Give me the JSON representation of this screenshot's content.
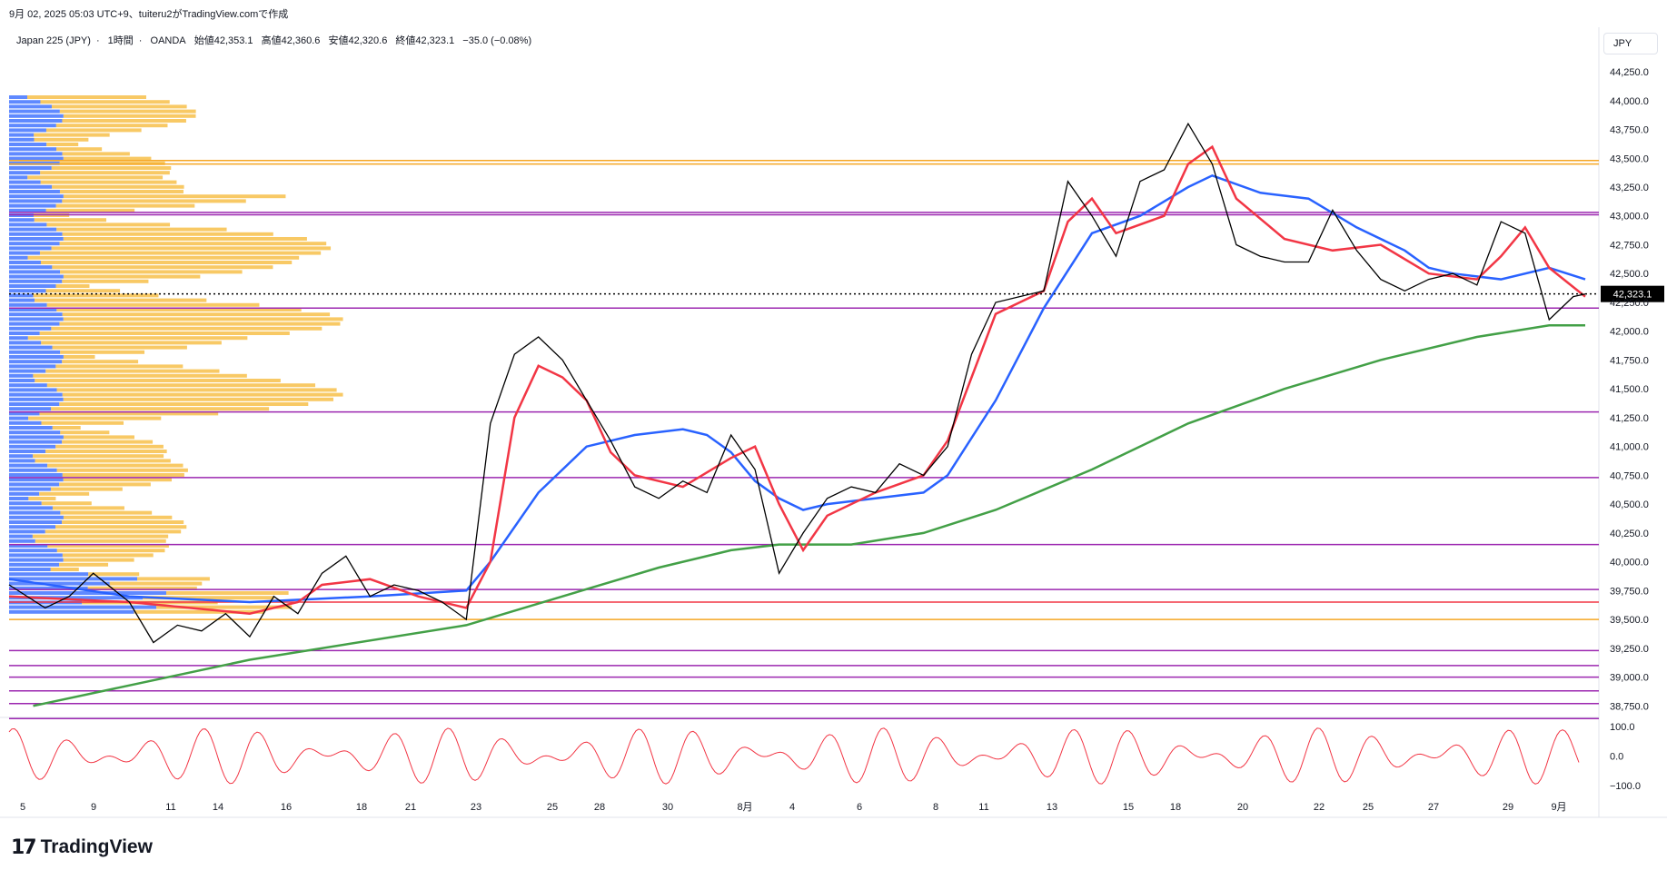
{
  "header": {
    "timestamp": "9月 02, 2025 05:03 UTC+9、tuiteru2がTradingView.comで作成"
  },
  "legend": {
    "symbol": "Japan 225 (JPY)",
    "interval": "1時間",
    "broker": "OANDA",
    "open": "始値42,353.1",
    "high": "高値42,360.6",
    "low": "安値42,320.6",
    "close": "終値42,323.1",
    "change": "−35.0 (−0.08%)"
  },
  "currency_button": "JPY",
  "last_price_label": "42,323.1",
  "brand": "TradingView",
  "colors": {
    "candle": "#000000",
    "ema_fast": "#f23645",
    "ema_mid": "#2962ff",
    "ema_slow": "#43a047",
    "fill_bull": "#f7c6c6",
    "fill_bear": "#c5d3f5",
    "hline_purple": "#9c27b0",
    "hline_orange": "#f5a623",
    "vp_blue": "#2962ff",
    "vp_orange": "#f5b731",
    "oscillator": "#f23645"
  },
  "chart_data": {
    "type": "line",
    "title": "Japan 225 (JPY) 1時間 OANDA",
    "y_axis": {
      "range": [
        38650,
        44400
      ],
      "ticks": [
        "44,250.0",
        "44,000.0",
        "43,750.0",
        "43,500.0",
        "43,250.0",
        "43,000.0",
        "42,750.0",
        "42,500.0",
        "42,250.0",
        "42,000.0",
        "41,750.0",
        "41,500.0",
        "41,250.0",
        "41,000.0",
        "40,750.0",
        "40,500.0",
        "40,250.0",
        "40,000.0",
        "39,750.0",
        "39,500.0",
        "39,250.0",
        "39,000.0",
        "38,750.0"
      ],
      "tick_values": [
        44250,
        44000,
        43750,
        43500,
        43250,
        43000,
        42750,
        42500,
        42250,
        42000,
        41750,
        41500,
        41250,
        41000,
        40750,
        40500,
        40250,
        40000,
        39750,
        39500,
        39250,
        39000,
        38750
      ]
    },
    "x_axis": {
      "ticks": [
        "5",
        "9",
        "11",
        "14",
        "16",
        "18",
        "21",
        "23",
        "25",
        "28",
        "30",
        "8月",
        "4",
        "6",
        "8",
        "11",
        "13",
        "15",
        "18",
        "20",
        "22",
        "25",
        "27",
        "29",
        "9月"
      ]
    },
    "price_series": {
      "name": "Japan 225",
      "x": [
        0,
        3,
        5,
        7,
        10,
        12,
        14,
        16,
        18,
        20,
        22,
        24,
        26,
        28,
        30,
        32,
        34,
        36,
        38,
        40,
        42,
        44,
        46,
        48,
        50,
        52,
        54,
        56,
        58,
        60,
        62,
        64,
        66,
        68,
        70,
        72,
        74,
        76,
        78,
        80,
        82,
        84,
        86,
        88,
        90,
        92,
        94,
        96,
        98,
        100
      ],
      "values": [
        39800,
        39600,
        39700,
        39900,
        39650,
        39300,
        39450,
        39400,
        39550,
        39350,
        39700,
        39550,
        39900,
        40050,
        39700,
        39800,
        39750,
        39650,
        39500,
        41200,
        41800,
        41950,
        41750,
        41400,
        41050,
        40650,
        40550,
        40700,
        40600,
        41100,
        40800,
        39900,
        40250,
        40550,
        40650,
        40600,
        40850,
        40750,
        41000,
        41800,
        42250,
        42300,
        42350,
        43300,
        43000,
        42650,
        43300,
        43400,
        43800,
        43450
      ]
    },
    "price_series_2": {
      "x": [
        100,
        102,
        104,
        106,
        108,
        110,
        112,
        114,
        116,
        118,
        120,
        122,
        124,
        126,
        128
      ],
      "values": [
        43450,
        42750,
        42650,
        42600,
        42600,
        43050,
        42700,
        42450,
        42350,
        42450,
        42500,
        42400,
        42950,
        42850,
        42100
      ]
    },
    "price_series_3": {
      "x": [
        128,
        130,
        131
      ],
      "values": [
        42100,
        42300,
        42323
      ]
    },
    "ema_fast": {
      "name": "",
      "values_note": "short EMA following price",
      "x": [
        0,
        10,
        20,
        24,
        26,
        30,
        34,
        38,
        40,
        42,
        44,
        46,
        48,
        50,
        52,
        56,
        60,
        62,
        64,
        66,
        68,
        72,
        76,
        78,
        80,
        82,
        84,
        86,
        88,
        90,
        92,
        96,
        98,
        100,
        102,
        106,
        110,
        114,
        118,
        122,
        124,
        126,
        128,
        131
      ],
      "values": [
        39700,
        39650,
        39550,
        39650,
        39800,
        39850,
        39700,
        39600,
        40000,
        41250,
        41700,
        41600,
        41400,
        40950,
        40750,
        40650,
        40900,
        41000,
        40500,
        40100,
        40400,
        40600,
        40750,
        41050,
        41600,
        42150,
        42250,
        42350,
        42950,
        43150,
        42850,
        43000,
        43450,
        43600,
        43150,
        42800,
        42700,
        42750,
        42500,
        42450,
        42650,
        42900,
        42550,
        42300
      ]
    },
    "ema_mid": {
      "name": "",
      "x": [
        0,
        10,
        20,
        30,
        38,
        40,
        44,
        48,
        52,
        56,
        58,
        60,
        62,
        64,
        66,
        68,
        72,
        76,
        78,
        82,
        86,
        90,
        94,
        98,
        100,
        104,
        108,
        112,
        116,
        118,
        120,
        124,
        128,
        131
      ],
      "values": [
        39850,
        39700,
        39650,
        39700,
        39750,
        40000,
        40600,
        41000,
        41100,
        41150,
        41100,
        40950,
        40700,
        40550,
        40450,
        40500,
        40550,
        40600,
        40750,
        41400,
        42200,
        42850,
        43000,
        43250,
        43350,
        43200,
        43150,
        42900,
        42700,
        42550,
        42500,
        42450,
        42550,
        42450
      ]
    },
    "ema_slow": {
      "name": "",
      "x": [
        2,
        20,
        38,
        46,
        54,
        60,
        64,
        70,
        76,
        82,
        90,
        98,
        106,
        114,
        122,
        128,
        131
      ],
      "values": [
        38750,
        39150,
        39450,
        39700,
        39950,
        40100,
        40150,
        40150,
        40250,
        40450,
        40800,
        41200,
        41500,
        41750,
        41950,
        42050,
        42050
      ]
    },
    "horizontal_levels": [
      {
        "value": 43480,
        "color": "orange"
      },
      {
        "value": 43450,
        "color": "orange"
      },
      {
        "value": 43030,
        "color": "purple"
      },
      {
        "value": 43010,
        "color": "purple"
      },
      {
        "value": 42200,
        "color": "purple"
      },
      {
        "value": 41300,
        "color": "purple"
      },
      {
        "value": 40730,
        "color": "purple"
      },
      {
        "value": 40150,
        "color": "purple"
      },
      {
        "value": 39760,
        "color": "purple"
      },
      {
        "value": 39650,
        "color": "red"
      },
      {
        "value": 39500,
        "color": "orange"
      },
      {
        "value": 39230,
        "color": "purple"
      },
      {
        "value": 39100,
        "color": "purple"
      },
      {
        "value": 39000,
        "color": "purple"
      },
      {
        "value": 38880,
        "color": "purple"
      },
      {
        "value": 38770,
        "color": "purple"
      },
      {
        "value": 38640,
        "color": "purple"
      }
    ],
    "last_price": 42323.1,
    "oscillator": {
      "range": [
        -100,
        100
      ],
      "ticks": [
        "100.0",
        "0.0",
        "−100.0"
      ],
      "tick_values": [
        100,
        0,
        -100
      ]
    },
    "legend_position": "top-left",
    "grid": false
  }
}
